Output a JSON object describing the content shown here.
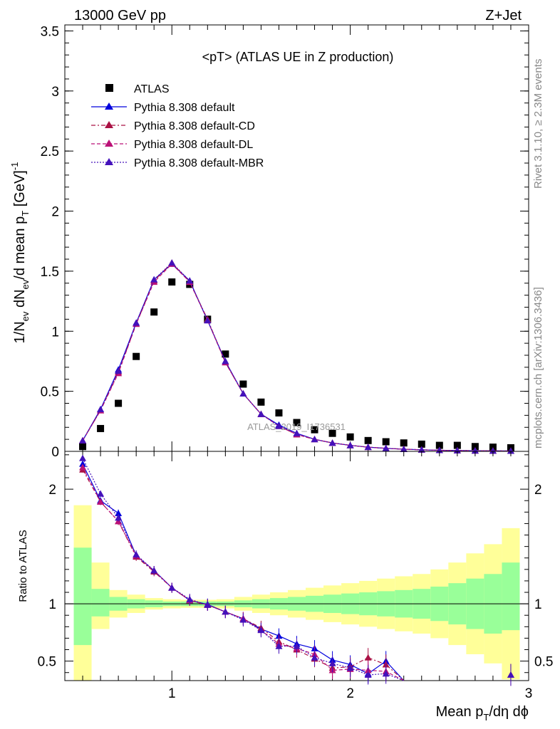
{
  "header": {
    "energy": "13000 GeV pp",
    "process": "Z+Jet",
    "title": "<pT> (ATLAS UE in Z production)",
    "side_rivet": "Rivet 3.1.10, ≥ 2.3M events",
    "side_mcplots": "mcplots.cern.ch [arXiv:1306.3436]",
    "watermark": "ATLAS_2019_I1736531"
  },
  "axes": {
    "ylabel_main": "1/N_ev dN_ev/d mean p_T [GeV]^-1",
    "ylabel_ratio": "Ratio to ATLAS",
    "xlabel": "Mean p_T/dη dϕ"
  },
  "chart_data": [
    {
      "type": "scatter",
      "panel": "main",
      "xlim": [
        0.4,
        3.0
      ],
      "ylim": [
        0,
        3.55
      ],
      "x_ticks": [
        "1",
        "2",
        "3"
      ],
      "y_ticks": [
        "0",
        "0.5",
        "1",
        "1.5",
        "2",
        "2.5",
        "3",
        "3.5"
      ],
      "x": [
        0.5,
        0.6,
        0.7,
        0.8,
        0.9,
        1.0,
        1.1,
        1.2,
        1.3,
        1.4,
        1.5,
        1.6,
        1.7,
        1.8,
        1.9,
        2.0,
        2.1,
        2.2,
        2.3,
        2.4,
        2.5,
        2.6,
        2.7,
        2.8,
        2.9
      ],
      "legend_position": "top-left",
      "series": [
        {
          "name": "ATLAS",
          "style": "data",
          "color": "#000000",
          "values": [
            0.04,
            0.19,
            0.4,
            0.79,
            1.16,
            1.41,
            1.39,
            1.1,
            0.81,
            0.56,
            0.41,
            0.32,
            0.24,
            0.18,
            0.15,
            0.12,
            0.09,
            0.08,
            0.07,
            0.06,
            0.05,
            0.05,
            0.04,
            0.035,
            0.03
          ]
        },
        {
          "name": "Pythia 8.308 default",
          "style": "solid",
          "color": "#0000dd",
          "values": [
            0.09,
            0.35,
            0.68,
            1.07,
            1.43,
            1.56,
            1.42,
            1.09,
            0.75,
            0.48,
            0.31,
            0.22,
            0.15,
            0.1,
            0.07,
            0.05,
            0.035,
            0.025,
            0.018,
            0.013,
            0.009,
            0.007,
            0.005,
            0.004,
            0.003
          ]
        },
        {
          "name": "Pythia 8.308 default-CD",
          "style": "dashdot",
          "color": "#aa1144",
          "values": [
            0.09,
            0.34,
            0.66,
            1.06,
            1.42,
            1.57,
            1.41,
            1.1,
            0.74,
            0.48,
            0.31,
            0.21,
            0.14,
            0.1,
            0.07,
            0.05,
            0.035,
            0.025,
            0.018,
            0.013,
            0.009,
            0.007,
            0.005,
            0.004,
            0.003
          ]
        },
        {
          "name": "Pythia 8.308 default-DL",
          "style": "dashed",
          "color": "#bb1177",
          "values": [
            0.09,
            0.34,
            0.65,
            1.06,
            1.41,
            1.56,
            1.41,
            1.09,
            0.74,
            0.48,
            0.31,
            0.21,
            0.14,
            0.1,
            0.07,
            0.05,
            0.035,
            0.025,
            0.018,
            0.013,
            0.009,
            0.007,
            0.005,
            0.004,
            0.003
          ]
        },
        {
          "name": "Pythia 8.308 default-MBR",
          "style": "dotted",
          "color": "#4411bb",
          "values": [
            0.09,
            0.35,
            0.67,
            1.07,
            1.43,
            1.57,
            1.42,
            1.09,
            0.75,
            0.48,
            0.31,
            0.21,
            0.15,
            0.1,
            0.07,
            0.05,
            0.035,
            0.025,
            0.018,
            0.013,
            0.009,
            0.007,
            0.005,
            0.004,
            0.003
          ]
        }
      ]
    },
    {
      "type": "line",
      "panel": "ratio",
      "xlim": [
        0.4,
        3.0
      ],
      "ylim": [
        0.33,
        2.33
      ],
      "x_ticks": [
        "1",
        "2",
        "3"
      ],
      "y_ticks": [
        "0.5",
        "1",
        "2"
      ],
      "bands": {
        "edges": [
          0.45,
          0.55,
          0.65,
          0.75,
          0.85,
          0.95,
          1.05,
          1.15,
          1.25,
          1.35,
          1.45,
          1.55,
          1.65,
          1.75,
          1.85,
          1.95,
          2.05,
          2.15,
          2.25,
          2.35,
          2.45,
          2.55,
          2.65,
          2.75,
          2.85,
          2.95
        ],
        "yellow_hi": [
          1.86,
          1.36,
          1.12,
          1.08,
          1.05,
          1.04,
          1.035,
          1.035,
          1.04,
          1.06,
          1.08,
          1.1,
          1.12,
          1.14,
          1.16,
          1.18,
          1.2,
          1.22,
          1.24,
          1.26,
          1.3,
          1.36,
          1.44,
          1.52,
          1.66
        ],
        "yellow_lo": [
          0.0,
          0.78,
          0.88,
          0.92,
          0.95,
          0.96,
          0.965,
          0.965,
          0.96,
          0.94,
          0.92,
          0.9,
          0.88,
          0.86,
          0.84,
          0.82,
          0.8,
          0.78,
          0.76,
          0.74,
          0.7,
          0.64,
          0.56,
          0.48,
          0.34
        ],
        "green_hi": [
          1.49,
          1.13,
          1.06,
          1.04,
          1.03,
          1.02,
          1.02,
          1.02,
          1.02,
          1.03,
          1.04,
          1.05,
          1.06,
          1.07,
          1.08,
          1.09,
          1.1,
          1.11,
          1.12,
          1.13,
          1.15,
          1.18,
          1.22,
          1.26,
          1.36
        ],
        "green_lo": [
          0.64,
          0.89,
          0.94,
          0.96,
          0.97,
          0.98,
          0.98,
          0.98,
          0.98,
          0.97,
          0.96,
          0.95,
          0.94,
          0.93,
          0.92,
          0.91,
          0.9,
          0.89,
          0.88,
          0.87,
          0.85,
          0.82,
          0.78,
          0.74,
          0.77
        ]
      },
      "x": [
        0.5,
        0.6,
        0.7,
        0.8,
        0.9,
        1.0,
        1.1,
        1.2,
        1.3,
        1.4,
        1.5,
        1.6,
        1.7,
        1.8,
        1.9,
        2.0,
        2.1,
        2.2,
        2.3,
        2.9
      ],
      "series": [
        {
          "name": "Pythia 8.308 default",
          "color": "#0000dd",
          "values": [
            2.22,
            1.9,
            1.79,
            1.42,
            1.29,
            1.14,
            1.03,
            0.995,
            0.93,
            0.87,
            0.78,
            0.72,
            0.65,
            0.61,
            0.51,
            0.47,
            0.39,
            0.5,
            0.2,
            0.32
          ]
        },
        {
          "name": "Pythia 8.308 default-CD",
          "color": "#aa1144",
          "values": [
            2.17,
            1.89,
            1.72,
            1.41,
            1.28,
            1.14,
            1.03,
            0.99,
            0.93,
            0.87,
            0.79,
            0.67,
            0.6,
            0.52,
            0.44,
            0.45,
            0.53,
            0.47,
            0.2,
            0.38
          ]
        },
        {
          "name": "Pythia 8.308 default-DL",
          "color": "#bb1177",
          "values": [
            2.19,
            1.89,
            1.72,
            1.42,
            1.29,
            1.14,
            1.03,
            0.99,
            0.93,
            0.87,
            0.77,
            0.65,
            0.61,
            0.56,
            0.42,
            0.43,
            0.42,
            0.41,
            0.2,
            0.38
          ]
        },
        {
          "name": "Pythia 8.308 default-MBR",
          "color": "#4411bb",
          "values": [
            2.27,
            1.96,
            1.75,
            1.43,
            1.29,
            1.14,
            1.04,
            0.99,
            0.93,
            0.86,
            0.77,
            0.63,
            0.63,
            0.53,
            0.48,
            0.44,
            0.38,
            0.39,
            0.2,
            0.38
          ]
        }
      ]
    }
  ]
}
